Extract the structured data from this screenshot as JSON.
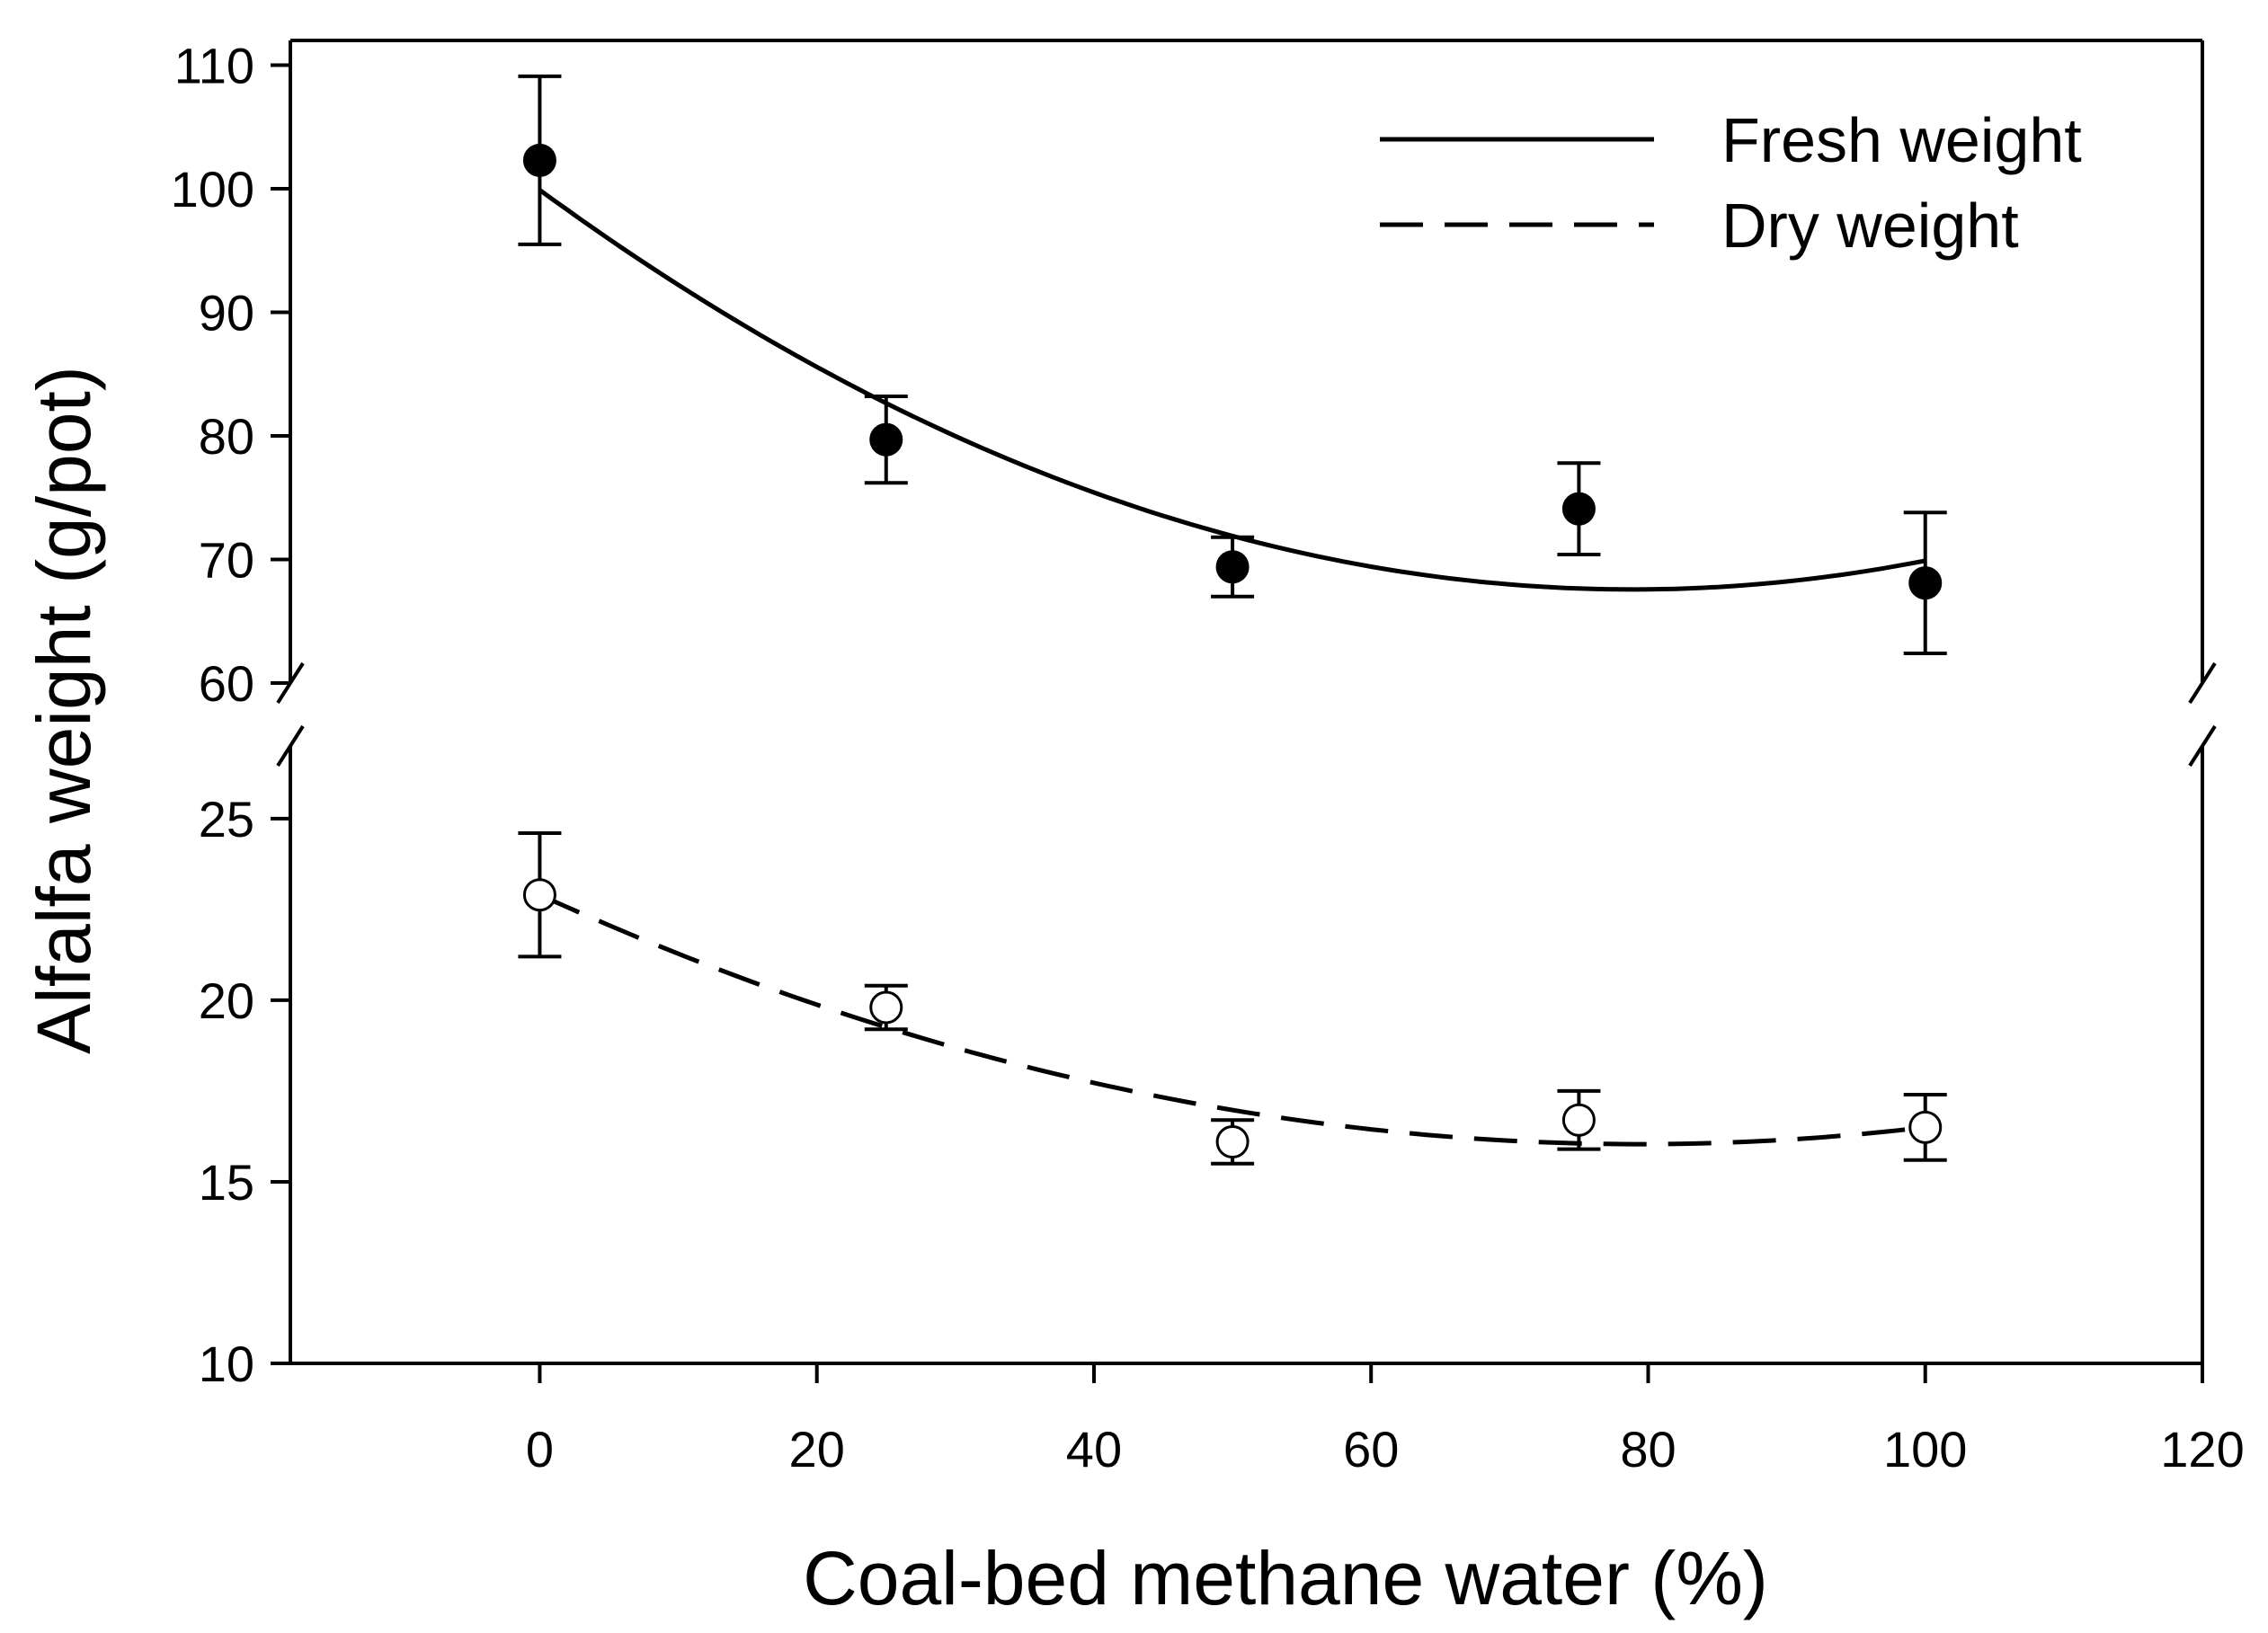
{
  "chart_data": {
    "type": "scatter",
    "title": "",
    "xlabel": "Coal-bed methane water (%)",
    "ylabel": "Alfalfa weight (g/pot)",
    "xlim": [
      -18,
      120
    ],
    "x_ticks": [
      0,
      20,
      40,
      60,
      80,
      100,
      120
    ],
    "y_axis_break": true,
    "upper_panel": {
      "ylim": [
        60,
        112
      ],
      "y_ticks": [
        60,
        70,
        80,
        90,
        100,
        110
      ]
    },
    "lower_panel": {
      "ylim": [
        10,
        27
      ],
      "y_ticks": [
        10,
        15,
        20,
        25
      ]
    },
    "grid": false,
    "legend_position": "top-right",
    "series": [
      {
        "name": "Fresh weight",
        "panel": "upper",
        "marker": "filled-circle",
        "line_style": "solid",
        "x": [
          0,
          25,
          50,
          75,
          100
        ],
        "y": [
          102.3,
          79.7,
          69.4,
          74.1,
          68.1
        ],
        "error": [
          6.8,
          3.5,
          2.4,
          3.7,
          5.7
        ],
        "fit_curve": {
          "type": "quadratic",
          "coefficients": [
            99.9,
            -0.82,
            0.0052
          ]
        }
      },
      {
        "name": "Dry weight",
        "panel": "lower",
        "marker": "open-circle",
        "line_style": "dashed",
        "x": [
          0,
          25,
          50,
          75,
          100
        ],
        "y": [
          22.9,
          19.8,
          16.1,
          16.7,
          16.5
        ],
        "error": [
          1.7,
          0.6,
          0.6,
          0.8,
          0.9
        ],
        "fit_curve": {
          "type": "quadratic",
          "coefficients": [
            22.9,
            -0.173,
            0.00109
          ]
        }
      }
    ]
  }
}
